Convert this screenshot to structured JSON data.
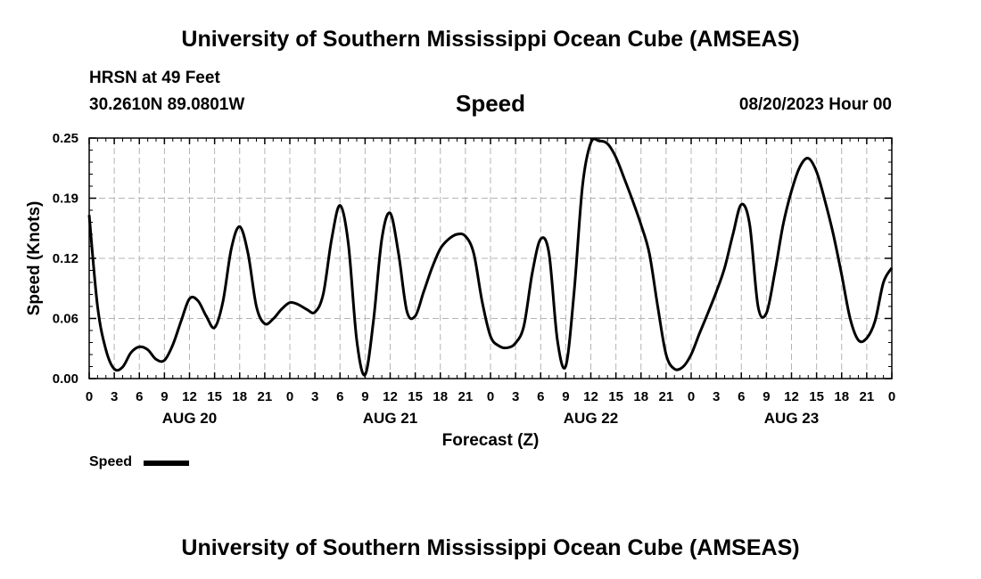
{
  "header": {
    "title": "University of Southern Mississippi Ocean Cube (AMSEAS)",
    "station": "HRSN at 49 Feet",
    "coords": "30.2610N  89.0801W",
    "date": "08/20/2023 Hour 00"
  },
  "footer": {
    "title": "University of Southern Mississippi Ocean Cube (AMSEAS)"
  },
  "chart_data": {
    "type": "line",
    "title": "Speed",
    "xlabel": "Forecast (Z)",
    "ylabel": "Speed (Knots)",
    "ylim": [
      0,
      0.25
    ],
    "yticks": [
      "0.00",
      "0.06",
      "0.12",
      "0.19",
      "0.25"
    ],
    "xlim_hours": [
      0,
      96
    ],
    "xticks": [
      "0",
      "3",
      "6",
      "9",
      "12",
      "15",
      "18",
      "21",
      "0",
      "3",
      "6",
      "9",
      "12",
      "15",
      "18",
      "21",
      "0",
      "3",
      "6",
      "9",
      "12",
      "15",
      "18",
      "21",
      "0",
      "3",
      "6",
      "9",
      "12",
      "15",
      "18",
      "21",
      "0"
    ],
    "day_labels": [
      "AUG 20",
      "AUG 21",
      "AUG 22",
      "AUG 23"
    ],
    "grid": true,
    "legend": {
      "label": "Speed",
      "placement": "bottom-left"
    },
    "series": [
      {
        "name": "Speed",
        "x": [
          0,
          1,
          2,
          3,
          4,
          5,
          6,
          7,
          8,
          9,
          10,
          11,
          12,
          13,
          14,
          15,
          16,
          17,
          18,
          19,
          20,
          21,
          22,
          23,
          24,
          25,
          26,
          27,
          28,
          29,
          30,
          31,
          32,
          33,
          34,
          35,
          36,
          37,
          38,
          39,
          40,
          41,
          42,
          43,
          44,
          45,
          46,
          47,
          48,
          49,
          50,
          51,
          52,
          53,
          54,
          55,
          56,
          57,
          58,
          59,
          60,
          61,
          62,
          63,
          64,
          65,
          66,
          67,
          68,
          69,
          70,
          71,
          72,
          73,
          74,
          75,
          76,
          77,
          78,
          79,
          80,
          81,
          82,
          83,
          84,
          85,
          86,
          87,
          88,
          89,
          90,
          91,
          92,
          93,
          94,
          95,
          96
        ],
        "values": [
          0.17,
          0.075,
          0.03,
          0.01,
          0.012,
          0.027,
          0.033,
          0.03,
          0.02,
          0.019,
          0.035,
          0.06,
          0.083,
          0.081,
          0.065,
          0.053,
          0.08,
          0.135,
          0.158,
          0.13,
          0.075,
          0.057,
          0.062,
          0.072,
          0.079,
          0.077,
          0.072,
          0.069,
          0.088,
          0.145,
          0.18,
          0.14,
          0.04,
          0.004,
          0.06,
          0.145,
          0.172,
          0.13,
          0.07,
          0.065,
          0.09,
          0.115,
          0.135,
          0.145,
          0.15,
          0.148,
          0.13,
          0.08,
          0.044,
          0.034,
          0.032,
          0.037,
          0.055,
          0.11,
          0.145,
          0.13,
          0.04,
          0.013,
          0.09,
          0.2,
          0.245,
          0.247,
          0.244,
          0.23,
          0.208,
          0.185,
          0.16,
          0.13,
          0.075,
          0.025,
          0.01,
          0.012,
          0.025,
          0.047,
          0.068,
          0.09,
          0.115,
          0.15,
          0.181,
          0.16,
          0.075,
          0.068,
          0.11,
          0.16,
          0.195,
          0.22,
          0.229,
          0.215,
          0.185,
          0.15,
          0.108,
          0.063,
          0.04,
          0.042,
          0.06,
          0.1,
          0.115
        ]
      }
    ]
  }
}
